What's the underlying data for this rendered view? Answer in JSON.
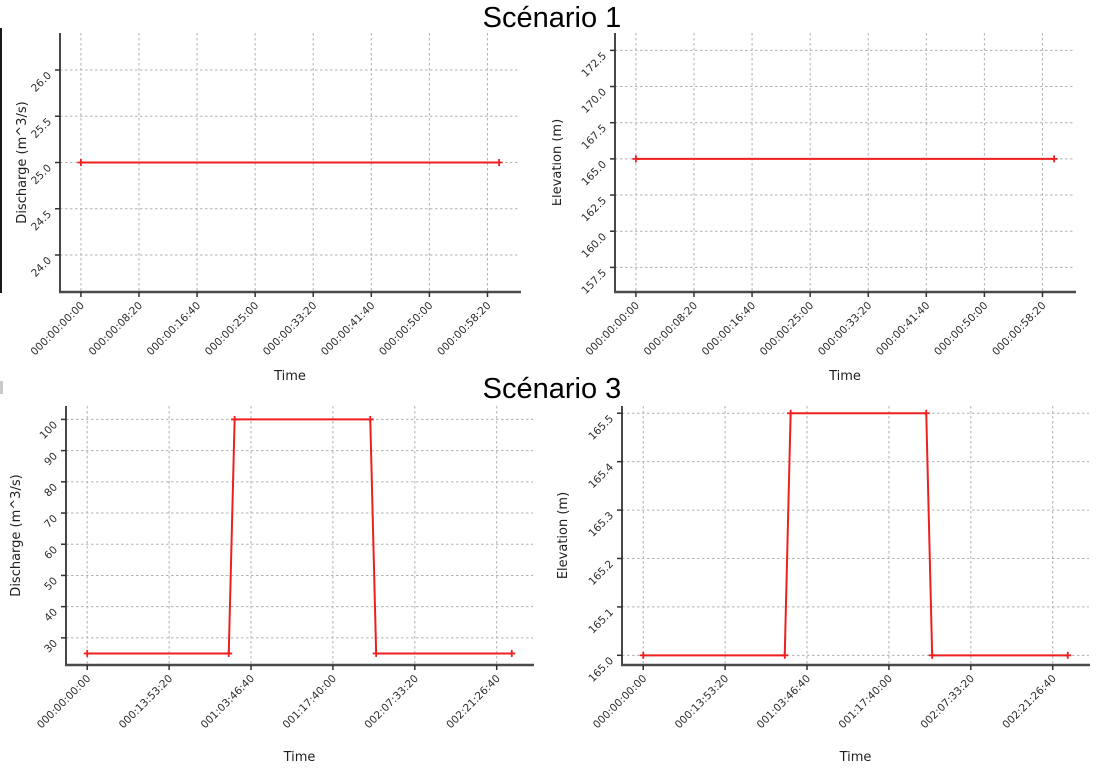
{
  "page": {
    "background": "#ffffff"
  },
  "titles": {
    "scenario1": "Scénario 1",
    "scenario3": "Scénario 3"
  },
  "style": {
    "grid_color": "#b0b0b0",
    "spine_color": "#333333",
    "tick_label_color": "#2b2b2b",
    "axis_label_color": "#1f1f1f"
  },
  "chart_data": [
    {
      "id": "scenario1_discharge",
      "type": "line",
      "scenario": "Scénario 1",
      "position": "top-left",
      "xlabel": "Time",
      "ylabel": "Discharge (m^3/s)",
      "line_color": "#ee1f1f",
      "marker": "plus",
      "grid": true,
      "x": [
        0,
        3600
      ],
      "y": [
        25.0,
        25.0
      ],
      "xlim": [
        -180,
        3780
      ],
      "ylim": [
        23.6,
        26.4
      ],
      "x_tick_values": [
        0,
        500,
        1000,
        1500,
        2000,
        2500,
        3000,
        3500
      ],
      "x_tick_labels": [
        "000:00:00:00",
        "000:00:08:20",
        "000:00:16:40",
        "000:00:25:00",
        "000:00:33:20",
        "000:00:41:40",
        "000:00:50:00",
        "000:00:58:20"
      ],
      "y_tick_values": [
        24.0,
        24.5,
        25.0,
        25.5,
        26.0
      ],
      "y_tick_labels": [
        "24.0",
        "24.5",
        "25.0",
        "25.5",
        "26.0"
      ]
    },
    {
      "id": "scenario1_elevation",
      "type": "line",
      "scenario": "Scénario 1",
      "position": "top-right",
      "xlabel": "Time",
      "ylabel": "Elevation (m)",
      "line_color": "#ee1f1f",
      "marker": "plus",
      "grid": true,
      "x": [
        0,
        3600
      ],
      "y": [
        165.0,
        165.0
      ],
      "xlim": [
        -180,
        3780
      ],
      "ylim": [
        155.8,
        173.7
      ],
      "x_tick_values": [
        0,
        500,
        1000,
        1500,
        2000,
        2500,
        3000,
        3500
      ],
      "x_tick_labels": [
        "000:00:00:00",
        "000:00:08:20",
        "000:00:16:40",
        "000:00:25:00",
        "000:00:33:20",
        "000:00:41:40",
        "000:00:50:00",
        "000:00:58:20"
      ],
      "y_tick_values": [
        157.5,
        160.0,
        162.5,
        165.0,
        167.5,
        170.0,
        172.5
      ],
      "y_tick_labels": [
        "157.5",
        "160.0",
        "162.5",
        "165.0",
        "167.5",
        "170.0",
        "172.5"
      ]
    },
    {
      "id": "scenario3_discharge",
      "type": "line",
      "scenario": "Scénario 3",
      "position": "bottom-left",
      "xlabel": "Time",
      "ylabel": "Discharge (m^3/s)",
      "line_color": "#ee1f1f",
      "marker": "plus",
      "grid": true,
      "x": [
        0,
        86400,
        90000,
        172800,
        176400,
        259200
      ],
      "y": [
        25.0,
        25.0,
        100.0,
        100.0,
        25.0,
        25.0
      ],
      "xlim": [
        -12960,
        272160
      ],
      "ylim": [
        21.3,
        104.3
      ],
      "x_tick_values": [
        0,
        50000,
        100000,
        150000,
        200000,
        250000
      ],
      "x_tick_labels": [
        "000:00:00:00",
        "000:13:53:20",
        "001:03:46:40",
        "001:17:40:00",
        "002:07:33:20",
        "002:21:26:40"
      ],
      "y_tick_values": [
        30,
        40,
        50,
        60,
        70,
        80,
        90,
        100
      ],
      "y_tick_labels": [
        "30",
        "40",
        "50",
        "60",
        "70",
        "80",
        "90",
        "100"
      ]
    },
    {
      "id": "scenario3_elevation",
      "type": "line",
      "scenario": "Scénario 3",
      "position": "bottom-right",
      "xlabel": "Time",
      "ylabel": "Elevation (m)",
      "line_color": "#ee1f1f",
      "marker": "plus",
      "grid": true,
      "x": [
        0,
        86400,
        90000,
        172800,
        176400,
        259200
      ],
      "y": [
        165.0,
        165.0,
        165.5,
        165.5,
        165.0,
        165.0
      ],
      "xlim": [
        -12960,
        272160
      ],
      "ylim": [
        164.98,
        165.515
      ],
      "x_tick_values": [
        0,
        50000,
        100000,
        150000,
        200000,
        250000
      ],
      "x_tick_labels": [
        "000:00:00:00",
        "000:13:53:20",
        "001:03:46:40",
        "001:17:40:00",
        "002:07:33:20",
        "002:21:26:40"
      ],
      "y_tick_values": [
        165.0,
        165.1,
        165.2,
        165.3,
        165.4,
        165.5
      ],
      "y_tick_labels": [
        "165.0",
        "165.1",
        "165.2",
        "165.3",
        "165.4",
        "165.5"
      ]
    }
  ]
}
